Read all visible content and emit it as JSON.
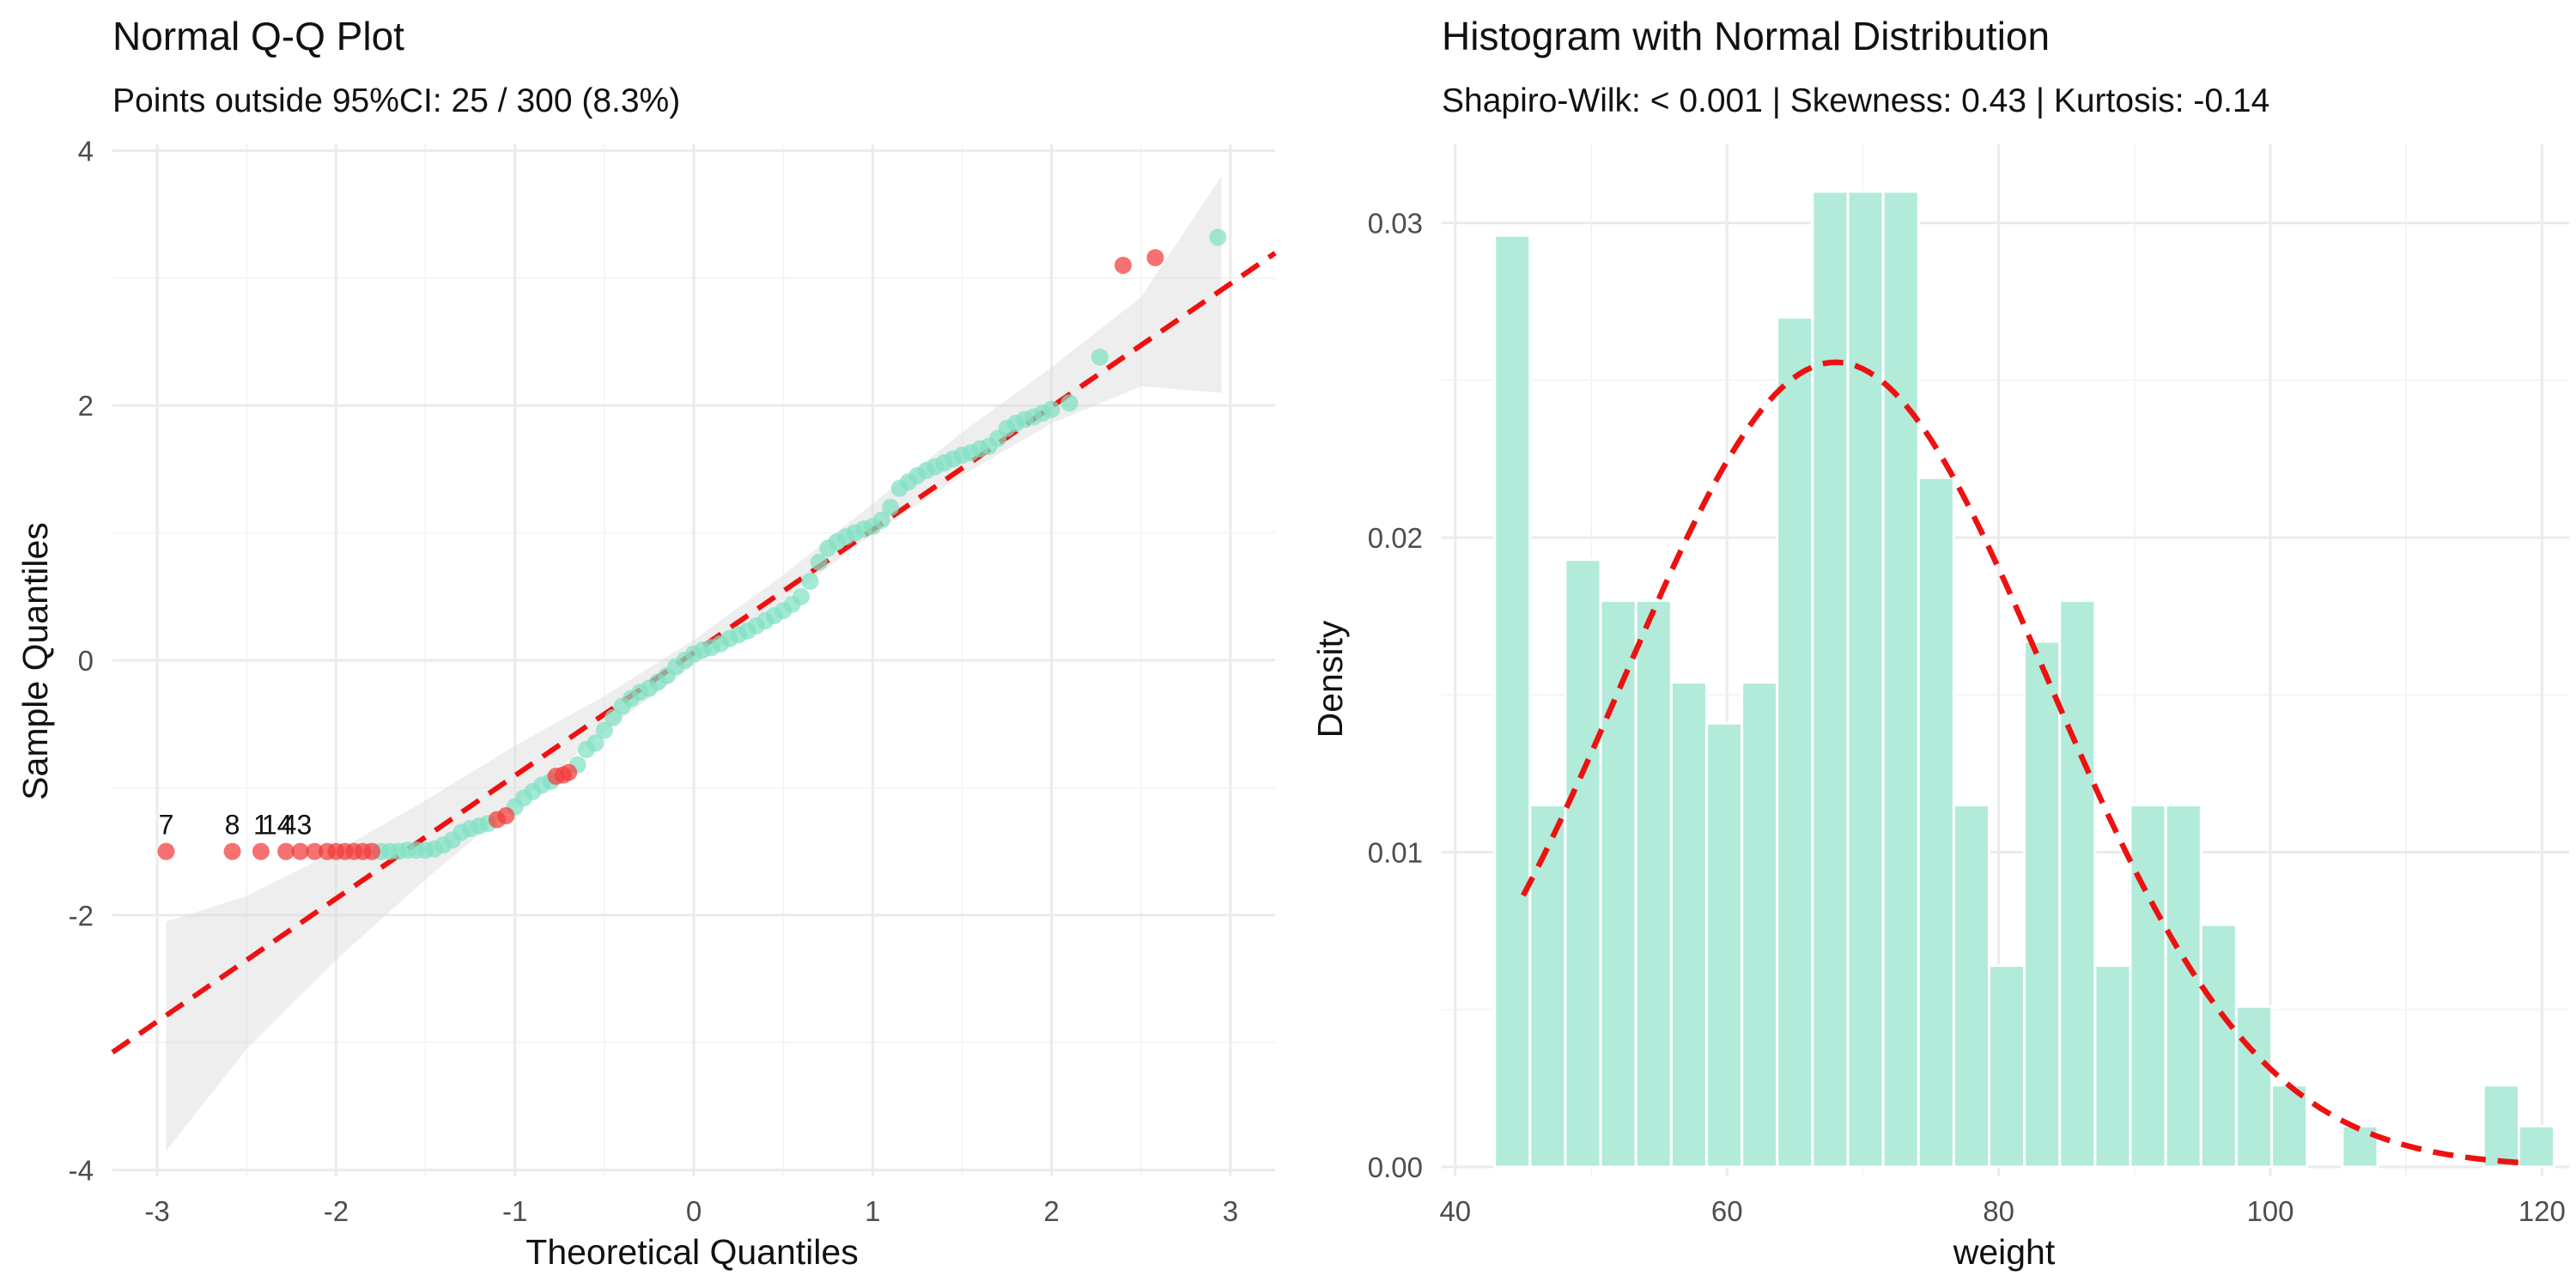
{
  "colors": {
    "point_normal": "#7FE0C3",
    "point_outlier": "#F23A3A",
    "reference_line": "#EE1111",
    "band": "#D9D9D9",
    "bar_fill": "#B2EBDA",
    "grid_major": "#EBEBEB",
    "grid_minor": "#F5F5F5",
    "text_main": "#111111",
    "text_axis": "#4D4D4D"
  },
  "chart_data": [
    {
      "type": "scatter",
      "title": "Normal Q-Q Plot",
      "subtitle": "Points outside 95%CI: 25 / 300 (8.3%)",
      "xlabel": "Theoretical Quantiles",
      "ylabel": "Sample Quantiles",
      "xlim": [
        -3.25,
        3.25
      ],
      "ylim": [
        -4.05,
        4.05
      ],
      "x_ticks": [
        -3,
        -2,
        -1,
        0,
        1,
        2,
        3
      ],
      "x_tick_labels": [
        "-3",
        "-2",
        "-1",
        "0",
        "1",
        "2",
        "3"
      ],
      "y_ticks": [
        -4,
        -2,
        0,
        2,
        4
      ],
      "y_tick_labels": [
        "-4",
        "-2",
        "0",
        "2",
        "4"
      ],
      "reference_line": {
        "slope": 0.965,
        "intercept": 0.06
      },
      "ci_band": {
        "x": [
          -2.95,
          -2.5,
          -2.0,
          -1.5,
          -1.0,
          -0.5,
          0.0,
          0.5,
          1.0,
          1.5,
          2.0,
          2.5,
          2.95
        ],
        "lower": [
          -3.85,
          -3.05,
          -2.35,
          -1.72,
          -1.13,
          -0.56,
          -0.04,
          0.47,
          0.99,
          1.45,
          1.86,
          2.15,
          2.1
        ],
        "upper": [
          -2.05,
          -1.85,
          -1.5,
          -1.1,
          -0.67,
          -0.28,
          0.16,
          0.67,
          1.23,
          1.79,
          2.3,
          2.85,
          3.8
        ]
      },
      "series": [
        {
          "name": "Inside 95% CI",
          "points": [
            [
              -1.75,
              -1.5
            ],
            [
              -1.7,
              -1.5
            ],
            [
              -1.65,
              -1.5
            ],
            [
              -1.6,
              -1.49
            ],
            [
              -1.55,
              -1.49
            ],
            [
              -1.5,
              -1.49
            ],
            [
              -1.45,
              -1.48
            ],
            [
              -1.4,
              -1.45
            ],
            [
              -1.35,
              -1.41
            ],
            [
              -1.3,
              -1.35
            ],
            [
              -1.25,
              -1.32
            ],
            [
              -1.2,
              -1.3
            ],
            [
              -1.15,
              -1.28
            ],
            [
              -1.0,
              -1.15
            ],
            [
              -0.95,
              -1.08
            ],
            [
              -0.9,
              -1.03
            ],
            [
              -0.85,
              -0.98
            ],
            [
              -0.8,
              -0.95
            ],
            [
              -0.65,
              -0.82
            ],
            [
              -0.6,
              -0.7
            ],
            [
              -0.55,
              -0.65
            ],
            [
              -0.5,
              -0.55
            ],
            [
              -0.45,
              -0.45
            ],
            [
              -0.4,
              -0.36
            ],
            [
              -0.35,
              -0.3
            ],
            [
              -0.3,
              -0.25
            ],
            [
              -0.25,
              -0.22
            ],
            [
              -0.2,
              -0.17
            ],
            [
              -0.15,
              -0.12
            ],
            [
              -0.1,
              -0.05
            ],
            [
              -0.05,
              0.0
            ],
            [
              0.0,
              0.05
            ],
            [
              0.05,
              0.08
            ],
            [
              0.1,
              0.1
            ],
            [
              0.15,
              0.13
            ],
            [
              0.2,
              0.17
            ],
            [
              0.25,
              0.2
            ],
            [
              0.3,
              0.23
            ],
            [
              0.35,
              0.27
            ],
            [
              0.4,
              0.31
            ],
            [
              0.45,
              0.35
            ],
            [
              0.5,
              0.39
            ],
            [
              0.55,
              0.44
            ],
            [
              0.6,
              0.5
            ],
            [
              0.65,
              0.62
            ],
            [
              0.7,
              0.77
            ],
            [
              0.75,
              0.88
            ],
            [
              0.8,
              0.93
            ],
            [
              0.85,
              0.97
            ],
            [
              0.9,
              1.0
            ],
            [
              0.95,
              1.03
            ],
            [
              1.0,
              1.05
            ],
            [
              1.05,
              1.1
            ],
            [
              1.1,
              1.2
            ],
            [
              1.15,
              1.35
            ],
            [
              1.2,
              1.4
            ],
            [
              1.25,
              1.45
            ],
            [
              1.3,
              1.49
            ],
            [
              1.35,
              1.52
            ],
            [
              1.4,
              1.55
            ],
            [
              1.45,
              1.58
            ],
            [
              1.5,
              1.61
            ],
            [
              1.55,
              1.63
            ],
            [
              1.6,
              1.66
            ],
            [
              1.65,
              1.68
            ],
            [
              1.7,
              1.74
            ],
            [
              1.75,
              1.82
            ],
            [
              1.8,
              1.86
            ],
            [
              1.85,
              1.89
            ],
            [
              1.9,
              1.91
            ],
            [
              1.95,
              1.94
            ],
            [
              2.0,
              1.97
            ],
            [
              2.1,
              2.02
            ],
            [
              2.27,
              2.38
            ],
            [
              2.93,
              3.32
            ]
          ]
        },
        {
          "name": "Outside 95% CI",
          "points": [
            [
              -2.95,
              -1.5
            ],
            [
              -2.58,
              -1.5
            ],
            [
              -2.42,
              -1.5
            ],
            [
              -2.28,
              -1.5
            ],
            [
              -2.2,
              -1.5
            ],
            [
              -2.12,
              -1.5
            ],
            [
              -2.05,
              -1.5
            ],
            [
              -2.0,
              -1.5
            ],
            [
              -1.95,
              -1.5
            ],
            [
              -1.9,
              -1.5
            ],
            [
              -1.85,
              -1.5
            ],
            [
              -1.8,
              -1.5
            ],
            [
              -1.1,
              -1.25
            ],
            [
              -1.05,
              -1.22
            ],
            [
              -0.77,
              -0.91
            ],
            [
              -0.73,
              -0.9
            ],
            [
              -0.7,
              -0.88
            ],
            [
              2.4,
              3.1
            ],
            [
              2.58,
              3.16
            ]
          ]
        }
      ],
      "point_labels": [
        {
          "text": "7",
          "x": -2.95,
          "y": -1.5
        },
        {
          "text": "8",
          "x": -2.58,
          "y": -1.5
        },
        {
          "text": "1",
          "x": -2.42,
          "y": -1.5
        },
        {
          "text": "14",
          "x": -2.33,
          "y": -1.5
        },
        {
          "text": "43",
          "x": -2.22,
          "y": -1.5
        }
      ]
    },
    {
      "type": "bar",
      "title": "Histogram with Normal Distribution",
      "subtitle": "Shapiro-Wilk: < 0.001 | Skewness: 0.43 | Kurtosis: -0.14",
      "xlabel": "weight",
      "ylabel": "Density",
      "xlim": [
        39,
        122
      ],
      "ylim": [
        -0.0003,
        0.0325
      ],
      "x_ticks": [
        40,
        60,
        80,
        100,
        120
      ],
      "x_tick_labels": [
        "40",
        "60",
        "80",
        "100",
        "120"
      ],
      "y_ticks": [
        0,
        0.01,
        0.02,
        0.03
      ],
      "y_tick_labels": [
        "0.00",
        "0.01",
        "0.02",
        "0.03"
      ],
      "bin_width": 2.6,
      "bin_starts": [
        42.9,
        45.5,
        48.1,
        50.7,
        53.3,
        55.9,
        58.5,
        61.1,
        63.7,
        66.3,
        68.9,
        71.5,
        74.1,
        76.7,
        79.3,
        81.9,
        84.5,
        87.1,
        89.7,
        92.3,
        94.9,
        97.5,
        100.1,
        102.7,
        105.3,
        107.9,
        110.5,
        113.1,
        115.7,
        118.3
      ],
      "densities": [
        0.0296,
        0.0115,
        0.0193,
        0.018,
        0.018,
        0.0154,
        0.0141,
        0.0154,
        0.027,
        0.031,
        0.031,
        0.031,
        0.0219,
        0.0115,
        0.0064,
        0.0167,
        0.018,
        0.0064,
        0.0115,
        0.0115,
        0.0077,
        0.0051,
        0.0026,
        0,
        0.0013,
        0,
        0,
        0,
        0.0026,
        0.0013
      ],
      "normal_curve": {
        "mean": 68,
        "sd": 15.6,
        "x_from": 45,
        "x_to": 119
      }
    }
  ]
}
